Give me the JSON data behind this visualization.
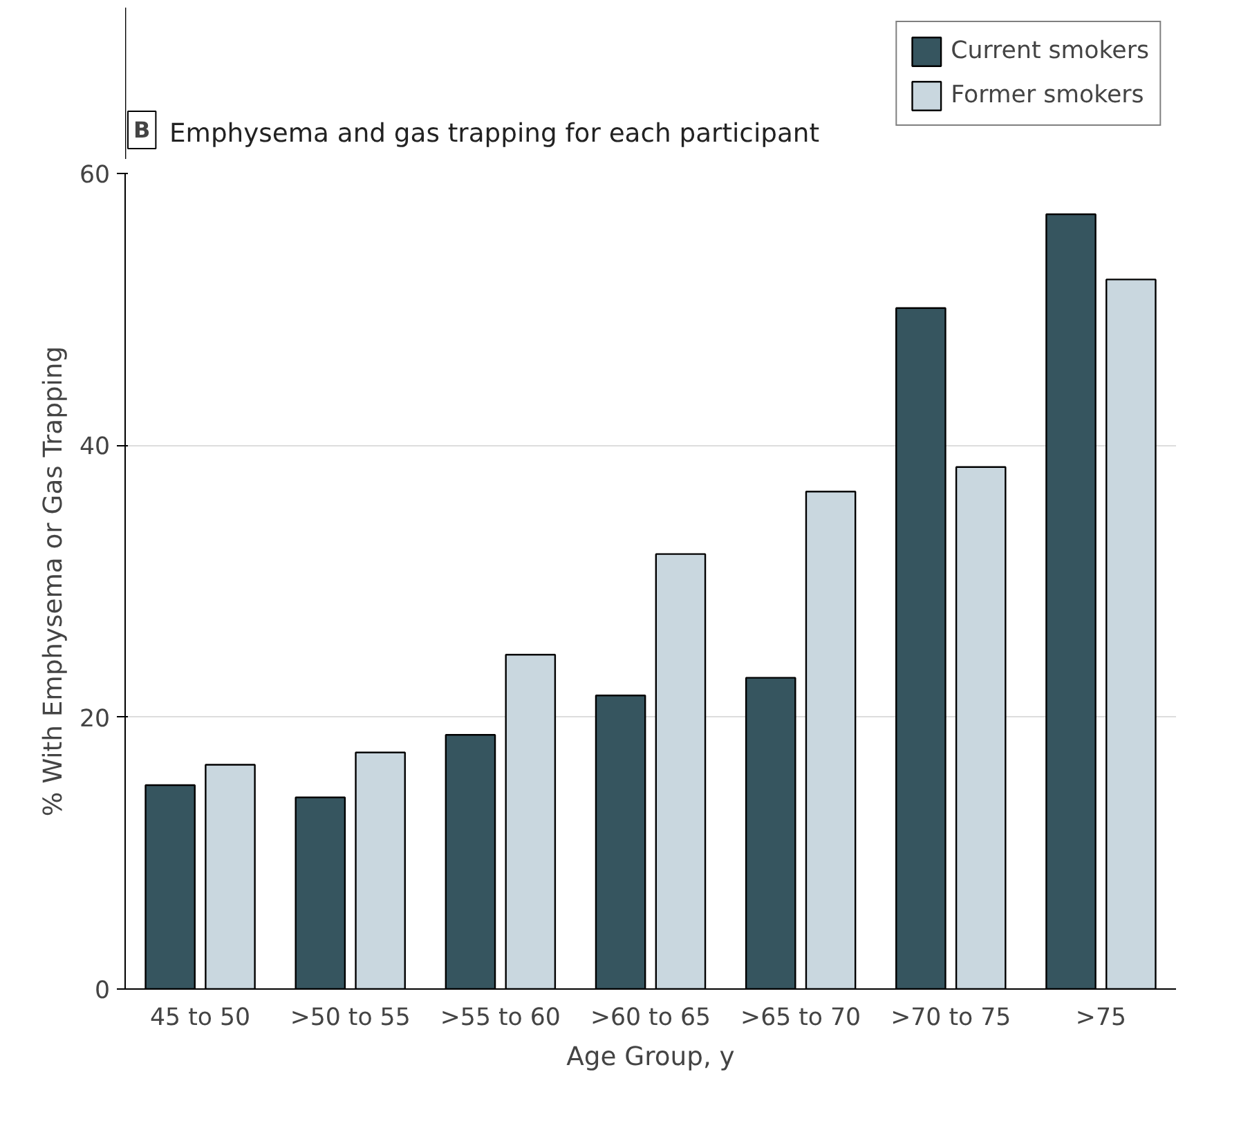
{
  "chart_data": {
    "type": "bar",
    "title": "Emphysema and gas trapping for each participant",
    "annotations": [
      "B"
    ],
    "xlabel": "Age Group, y",
    "ylabel": "% With Emphysema or Gas Trapping",
    "categories": [
      "45 to 50",
      ">50 to 55",
      ">55 to 60",
      ">60 to 65",
      ">65 to 70",
      ">70 to 75",
      ">75"
    ],
    "series": [
      {
        "name": "Current smokers",
        "color": "#36555f",
        "values": [
          15,
          14.1,
          18.7,
          21.6,
          22.9,
          50.1,
          57
        ]
      },
      {
        "name": "Former smokers",
        "color": "#c9d7df",
        "values": [
          16.5,
          17.4,
          24.6,
          32,
          36.6,
          38.4,
          52.2
        ]
      }
    ],
    "ylim": [
      0,
      60
    ],
    "yticks": [
      0,
      20,
      40,
      60
    ],
    "grid": "y",
    "legend": "top right"
  }
}
